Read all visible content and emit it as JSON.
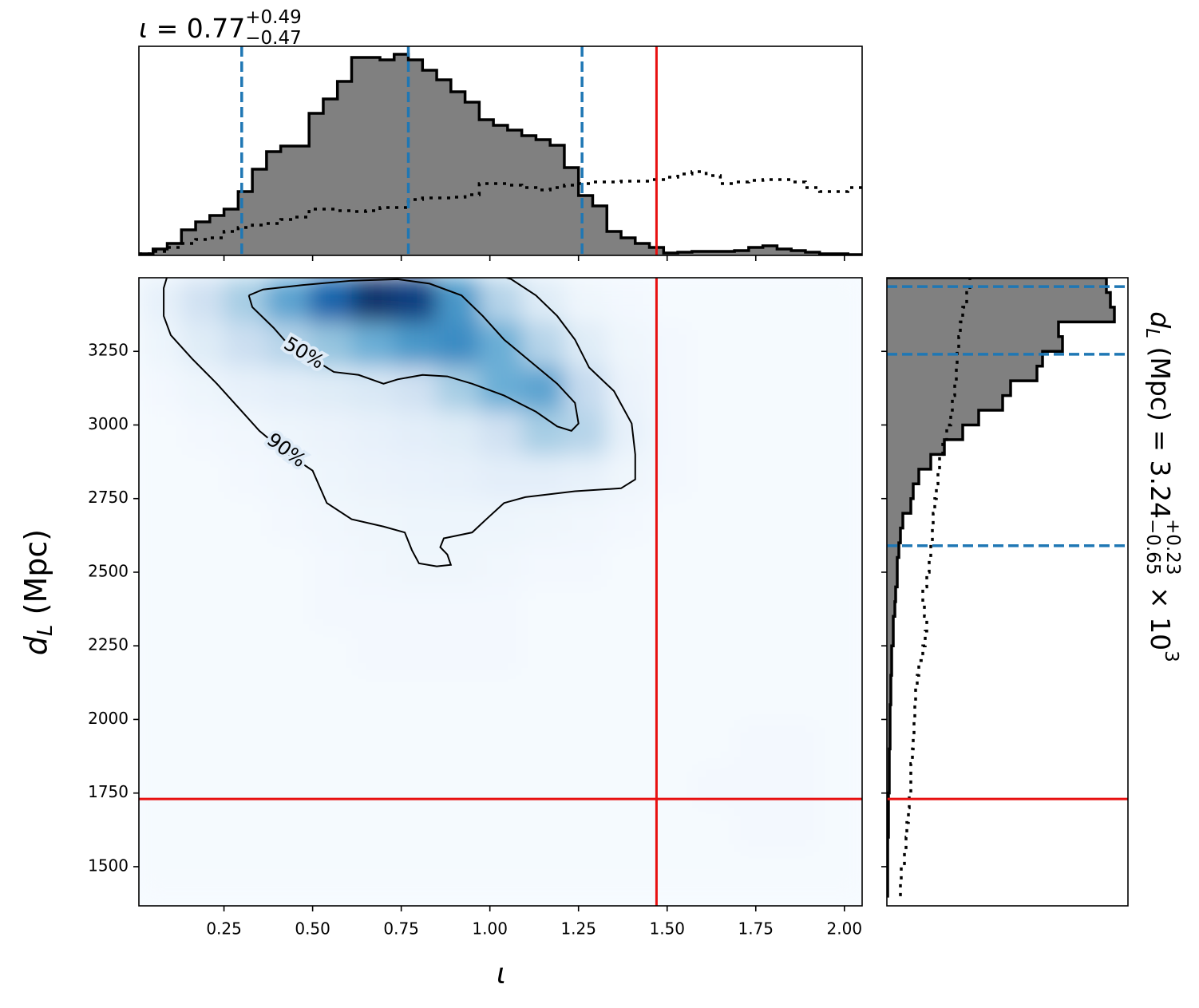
{
  "chart_data": {
    "type": "corner",
    "title": {
      "prefix": "ι = ",
      "main": "0.77",
      "sup": "+0.49",
      "sub": "−0.47"
    },
    "xlabel": "ι",
    "ylabel": {
      "var": "d",
      "sub": "L",
      "unit": " (Mpc)"
    },
    "right_label": {
      "var": "d",
      "sub": "L",
      "mid": " (Mpc) = ",
      "main": "3.24",
      "sup": "+0.23",
      "low": "−0.65",
      "tail": " × 10",
      "exp": "3"
    },
    "xlim": [
      0.01,
      2.05
    ],
    "ylim": [
      1367,
      3500
    ],
    "xticks": [
      0.25,
      {
        "value": 0.5,
        "label": "0.50"
      },
      0.75,
      {
        "value": 1.0,
        "label": "1.00"
      },
      1.25,
      {
        "value": 1.5,
        "label": "1.50"
      },
      1.75,
      {
        "value": 2.0,
        "label": "2.00"
      }
    ],
    "yticks": [
      1500,
      1750,
      2000,
      2250,
      2500,
      2750,
      3000,
      3250
    ],
    "density": {
      "x_edges": [
        0.01,
        0.13,
        0.25,
        0.37,
        0.49,
        0.61,
        0.73,
        0.85,
        0.97,
        1.09,
        1.21,
        1.33,
        1.45,
        1.57,
        1.69,
        1.81,
        1.93,
        2.05
      ],
      "y_edges": [
        1400,
        1550,
        1700,
        1850,
        2000,
        2150,
        2300,
        2450,
        2600,
        2750,
        2900,
        3050,
        3200,
        3350,
        3500
      ],
      "values": [
        [
          0.01,
          0.01,
          0.01,
          0.01,
          0.01,
          0.01,
          0.01,
          0.01,
          0.01,
          0.01,
          0.01,
          0.01,
          0.01,
          0.01,
          0.01,
          0.01,
          0.01
        ],
        [
          0.01,
          0.01,
          0.01,
          0.01,
          0.01,
          0.01,
          0.01,
          0.01,
          0.01,
          0.01,
          0.01,
          0.01,
          0.01,
          0.01,
          0.02,
          0.02,
          0.01
        ],
        [
          0.01,
          0.01,
          0.01,
          0.01,
          0.01,
          0.01,
          0.01,
          0.01,
          0.01,
          0.01,
          0.01,
          0.01,
          0.01,
          0.02,
          0.02,
          0.02,
          0.01
        ],
        [
          0.01,
          0.01,
          0.01,
          0.01,
          0.01,
          0.01,
          0.01,
          0.01,
          0.01,
          0.01,
          0.01,
          0.01,
          0.01,
          0.01,
          0.02,
          0.02,
          0.01
        ],
        [
          0.01,
          0.01,
          0.01,
          0.01,
          0.01,
          0.01,
          0.01,
          0.01,
          0.01,
          0.01,
          0.01,
          0.01,
          0.01,
          0.01,
          0.01,
          0.01,
          0.01
        ],
        [
          0.01,
          0.01,
          0.01,
          0.01,
          0.01,
          0.02,
          0.02,
          0.02,
          0.02,
          0.01,
          0.01,
          0.01,
          0.01,
          0.01,
          0.01,
          0.01,
          0.01
        ],
        [
          0.01,
          0.01,
          0.01,
          0.01,
          0.02,
          0.02,
          0.02,
          0.02,
          0.02,
          0.01,
          0.01,
          0.01,
          0.01,
          0.01,
          0.01,
          0.01,
          0.01
        ],
        [
          0.01,
          0.01,
          0.01,
          0.01,
          0.02,
          0.03,
          0.04,
          0.04,
          0.03,
          0.02,
          0.02,
          0.01,
          0.01,
          0.01,
          0.01,
          0.01,
          0.01
        ],
        [
          0.01,
          0.01,
          0.01,
          0.02,
          0.03,
          0.04,
          0.05,
          0.05,
          0.05,
          0.04,
          0.03,
          0.02,
          0.01,
          0.01,
          0.01,
          0.01,
          0.01
        ],
        [
          0.01,
          0.01,
          0.02,
          0.03,
          0.05,
          0.06,
          0.07,
          0.08,
          0.1,
          0.1,
          0.08,
          0.04,
          0.02,
          0.01,
          0.01,
          0.01,
          0.01
        ],
        [
          0.01,
          0.02,
          0.03,
          0.05,
          0.06,
          0.08,
          0.1,
          0.12,
          0.2,
          0.35,
          0.3,
          0.08,
          0.02,
          0.01,
          0.01,
          0.01,
          0.01
        ],
        [
          0.02,
          0.05,
          0.08,
          0.1,
          0.12,
          0.15,
          0.2,
          0.35,
          0.5,
          0.55,
          0.25,
          0.06,
          0.02,
          0.01,
          0.01,
          0.01,
          0.01
        ],
        [
          0.05,
          0.12,
          0.22,
          0.3,
          0.4,
          0.5,
          0.6,
          0.65,
          0.5,
          0.3,
          0.12,
          0.04,
          0.02,
          0.01,
          0.01,
          0.01,
          0.01
        ],
        [
          0.08,
          0.2,
          0.35,
          0.55,
          0.8,
          1.0,
          0.95,
          0.6,
          0.3,
          0.12,
          0.04,
          0.02,
          0.01,
          0.01,
          0.01,
          0.01,
          0.01
        ]
      ],
      "colormap": [
        "#f7fbff",
        "#deebf7",
        "#c6dbef",
        "#9ecae1",
        "#6baed6",
        "#4292c6",
        "#2171b5",
        "#08519c",
        "#08306b"
      ]
    },
    "contours": [
      {
        "label": "50%",
        "x": [
          0.32,
          0.33,
          0.39,
          0.43,
          0.52,
          0.56,
          0.63,
          0.7,
          0.74,
          0.81,
          0.88,
          0.95,
          1.04,
          1.13,
          1.19,
          1.23,
          1.25,
          1.24,
          1.19,
          1.12,
          1.04,
          0.98,
          0.92,
          0.83,
          0.74,
          0.61,
          0.47,
          0.36,
          0.32
        ],
        "y": [
          3440,
          3400,
          3330,
          3275,
          3210,
          3180,
          3170,
          3140,
          3155,
          3170,
          3165,
          3140,
          3100,
          3045,
          2995,
          2980,
          3005,
          3075,
          3140,
          3210,
          3290,
          3370,
          3440,
          3480,
          3495,
          3490,
          3475,
          3460,
          3440
        ]
      },
      {
        "label": "90%",
        "x": [
          0.09,
          0.08,
          0.08,
          0.1,
          0.16,
          0.23,
          0.29,
          0.35,
          0.42,
          0.5,
          0.52,
          0.54,
          0.61,
          0.7,
          0.76,
          0.78,
          0.8,
          0.85,
          0.89,
          0.88,
          0.86,
          0.87,
          0.95,
          0.99,
          1.04,
          1.1,
          1.24,
          1.37,
          1.41,
          1.41,
          1.4,
          1.35,
          1.28,
          1.24,
          1.19,
          1.13,
          1.06,
          1.01
        ],
        "y": [
          3505,
          3465,
          3370,
          3305,
          3225,
          3140,
          3060,
          2980,
          2910,
          2845,
          2790,
          2735,
          2680,
          2655,
          2635,
          2575,
          2530,
          2520,
          2525,
          2560,
          2585,
          2615,
          2635,
          2680,
          2735,
          2755,
          2775,
          2785,
          2815,
          2900,
          3005,
          3115,
          3195,
          3290,
          3370,
          3440,
          3495,
          3515
        ]
      }
    ],
    "truth": {
      "x": 1.47,
      "y": 1730,
      "color": "#e81010"
    },
    "quantile_color": "#1f77b4",
    "hist_color": "#808080",
    "marginal_x": {
      "bins": [
        0.01,
        0.05,
        0.09,
        0.13,
        0.17,
        0.21,
        0.25,
        0.29,
        0.33,
        0.37,
        0.41,
        0.45,
        0.49,
        0.53,
        0.57,
        0.61,
        0.65,
        0.69,
        0.73,
        0.77,
        0.81,
        0.85,
        0.89,
        0.93,
        0.97,
        1.01,
        1.05,
        1.09,
        1.13,
        1.17,
        1.21,
        1.25,
        1.29,
        1.33,
        1.37,
        1.41,
        1.45,
        1.49,
        1.53,
        1.57,
        1.61,
        1.65,
        1.69,
        1.73,
        1.77,
        1.81,
        1.85,
        1.89,
        1.93,
        1.97,
        2.01,
        2.05
      ],
      "counts": [
        0.02,
        0.08,
        0.15,
        0.32,
        0.42,
        0.5,
        0.58,
        0.8,
        1.08,
        1.3,
        1.37,
        1.37,
        1.78,
        1.96,
        2.18,
        2.48,
        2.48,
        2.45,
        2.52,
        2.45,
        2.32,
        2.2,
        2.05,
        1.92,
        1.7,
        1.63,
        1.57,
        1.5,
        1.45,
        1.38,
        1.1,
        0.75,
        0.62,
        0.3,
        0.22,
        0.15,
        0.1,
        0.03,
        0.04,
        0.05,
        0.05,
        0.05,
        0.06,
        0.1,
        0.12,
        0.08,
        0.06,
        0.04,
        0.02,
        0.02,
        0.01
      ],
      "prior": [
        0.02,
        0.05,
        0.1,
        0.15,
        0.2,
        0.22,
        0.3,
        0.35,
        0.38,
        0.4,
        0.45,
        0.48,
        0.58,
        0.58,
        0.56,
        0.55,
        0.56,
        0.6,
        0.6,
        0.7,
        0.72,
        0.72,
        0.73,
        0.76,
        0.9,
        0.9,
        0.88,
        0.85,
        0.82,
        0.85,
        0.88,
        0.9,
        0.92,
        0.92,
        0.93,
        0.93,
        0.95,
        0.98,
        1.02,
        1.05,
        1.0,
        0.9,
        0.92,
        0.94,
        0.95,
        0.95,
        0.92,
        0.85,
        0.8,
        0.8,
        0.85
      ],
      "quantiles": [
        0.3,
        0.77,
        1.26
      ],
      "ylim": [
        0,
        2.62
      ]
    },
    "marginal_y": {
      "bins": [
        1400,
        1450,
        1500,
        1550,
        1600,
        1650,
        1700,
        1750,
        1800,
        1850,
        1900,
        1950,
        2000,
        2050,
        2100,
        2150,
        2200,
        2250,
        2300,
        2350,
        2400,
        2450,
        2500,
        2550,
        2600,
        2650,
        2700,
        2750,
        2800,
        2850,
        2900,
        2950,
        3000,
        3050,
        3100,
        3150,
        3200,
        3250,
        3300,
        3350,
        3400,
        3450,
        3500
      ],
      "counts": [
        0.01,
        0.01,
        0.01,
        0.01,
        0.02,
        0.02,
        0.02,
        0.03,
        0.03,
        0.03,
        0.04,
        0.04,
        0.04,
        0.05,
        0.05,
        0.06,
        0.06,
        0.08,
        0.08,
        0.1,
        0.11,
        0.13,
        0.13,
        0.15,
        0.17,
        0.2,
        0.3,
        0.33,
        0.4,
        0.55,
        0.72,
        0.95,
        1.15,
        1.45,
        1.55,
        1.88,
        1.95,
        2.2,
        2.15,
        2.85,
        2.8,
        2.75
      ],
      "prior": [
        0.17,
        0.18,
        0.22,
        0.24,
        0.25,
        0.27,
        0.28,
        0.3,
        0.3,
        0.32,
        0.33,
        0.34,
        0.35,
        0.36,
        0.38,
        0.4,
        0.45,
        0.48,
        0.5,
        0.47,
        0.45,
        0.5,
        0.53,
        0.55,
        0.57,
        0.58,
        0.6,
        0.62,
        0.64,
        0.66,
        0.7,
        0.75,
        0.8,
        0.82,
        0.85,
        0.87,
        0.88,
        0.9,
        0.92,
        0.95,
        1.0,
        1.04
      ],
      "quantiles": [
        2590,
        3240,
        3470
      ],
      "xlim": [
        0,
        3.02
      ]
    }
  }
}
